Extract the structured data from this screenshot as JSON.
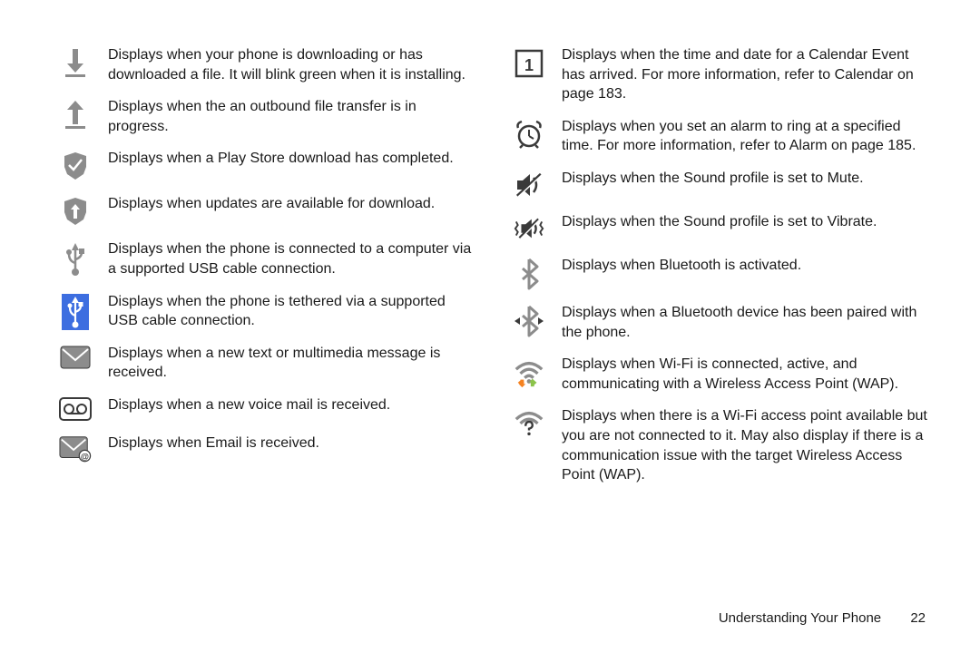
{
  "colors": {
    "gray": "#8c8c8c",
    "dark": "#3a3a3a",
    "blue": "#3d6ee0",
    "white": "#ffffff",
    "orange": "#f58220",
    "green": "#8bc34a"
  },
  "left": [
    {
      "icon": "download",
      "text": "Displays when your phone is downloading or has downloaded a file. It will blink green when it is installing."
    },
    {
      "icon": "upload",
      "text": "Displays when the an outbound file transfer is in progress."
    },
    {
      "icon": "check-box",
      "text": "Displays when a Play Store download has completed."
    },
    {
      "icon": "update-box",
      "text": "Displays when updates are available for download."
    },
    {
      "icon": "usb",
      "text": "Displays when the phone is connected to a computer via a supported USB cable connection."
    },
    {
      "icon": "usb-tether",
      "text": "Displays when the phone is tethered via a supported USB cable connection."
    },
    {
      "icon": "message",
      "text": "Displays when a new text or multimedia message is received."
    },
    {
      "icon": "voicemail",
      "text": "Displays when a new voice mail is received."
    },
    {
      "icon": "email",
      "text": "Displays when Email is received."
    }
  ],
  "right": [
    {
      "icon": "calendar",
      "text": "Displays when the time and date for a Calendar Event has arrived. For more information, refer to ",
      "ref": "Calendar",
      "page": " on page 183."
    },
    {
      "icon": "alarm",
      "text": "Displays when you set an alarm to ring at a specified time. For more information, refer to ",
      "ref": "Alarm",
      "page": " on page 185."
    },
    {
      "icon": "mute",
      "text": "Displays when the Sound profile is set to Mute."
    },
    {
      "icon": "vibrate",
      "text": "Displays when the Sound profile is set to Vibrate."
    },
    {
      "icon": "bluetooth",
      "text": "Displays when Bluetooth is activated."
    },
    {
      "icon": "bluetooth-paired",
      "text": "Displays when a Bluetooth device has been paired with the phone."
    },
    {
      "icon": "wifi-active",
      "text": "Displays when Wi-Fi is connected, active, and communicating with a Wireless Access Point (WAP)."
    },
    {
      "icon": "wifi-available",
      "text": "Displays when there is a Wi-Fi access point available but you are not connected to it. May also display if there is a communication issue with the target Wireless Access Point (WAP)."
    }
  ],
  "footer": {
    "section": "Understanding Your Phone",
    "page": "22"
  }
}
